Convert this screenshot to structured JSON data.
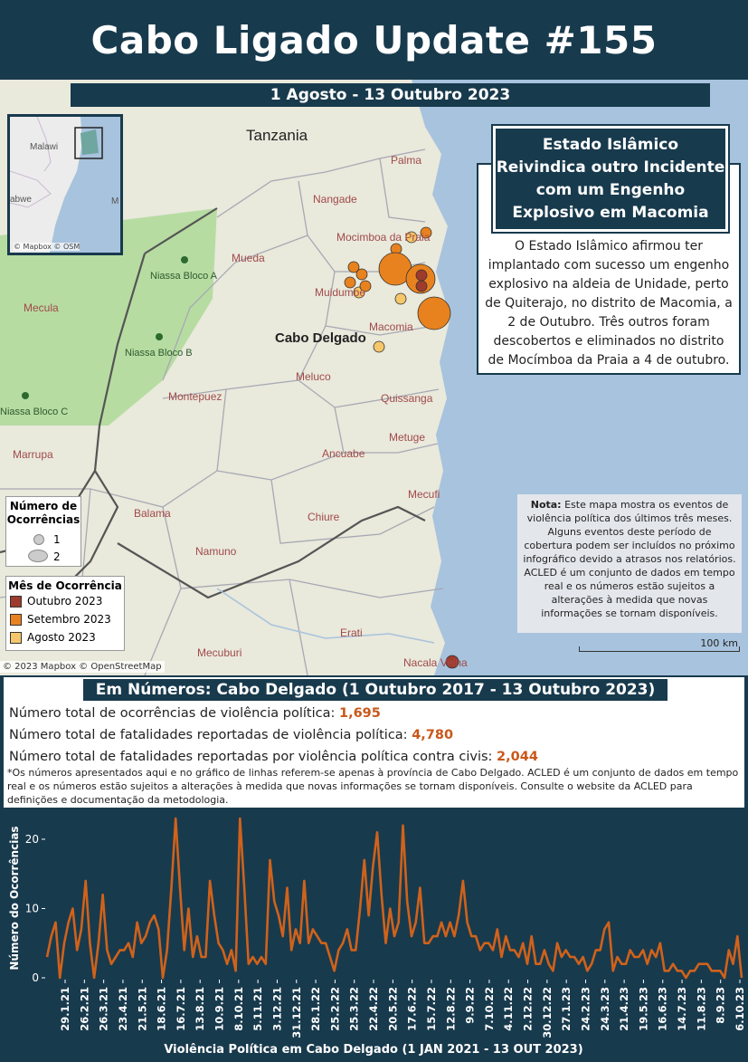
{
  "header": {
    "title": "Cabo Ligado Update #155"
  },
  "map": {
    "date_range": "1 Agosto - 13 Outubro 2023",
    "country_label": "Tanzania",
    "province_label": "Cabo Delgado",
    "district_labels": [
      "Palma",
      "Nangade",
      "Mocimboa da Praia",
      "Mueda",
      "Muidumbe",
      "Macomia",
      "Meluco",
      "Montepuez",
      "Quissanga",
      "Ancuabe",
      "Metuge",
      "Mecufi",
      "Chiure",
      "Balama",
      "Namuno",
      "Erati",
      "Mecuburi",
      "Nacala Velha",
      "Marrupa",
      "Mecula"
    ],
    "park_labels": [
      "Niassa Bloco A",
      "Niassa Bloco B",
      "Niassa Bloco C"
    ],
    "inset_labels": [
      "Malawi",
      "abwe",
      "M"
    ],
    "inset_attr": "© Mapbox © OSM",
    "map_attr": "© 2023 Mapbox © OpenStreetMap",
    "scale_label": "100 km",
    "colors": {
      "outubro": "#9e3b2c",
      "setembro": "#e8821e",
      "agosto": "#f6c66a",
      "water": "#a8c3dd",
      "land": "#e9e9dc",
      "park": "#b7dca2"
    }
  },
  "callout": {
    "title": "Estado Islâmico Reivindica outro Incidente com um Engenho Explosivo em Macomia",
    "body": "O Estado Islâmico afirmou ter implantado com sucesso um engenho explosivo na aldeia de Unidade, perto de Quiterajo, no distrito de Macomia, a 2 de Outubro. Três outros foram descobertos e eliminados no distrito de Mocímboa da Praia a 4 de outubro."
  },
  "note": {
    "label": "Nota:",
    "text": " Este mapa mostra os eventos de violência política dos últimos três meses. Alguns eventos deste período de cobertura podem ser incluídos no próximo infográfico devido a atrasos nos relatórios. ACLED é um conjunto de dados em tempo real e os números estão sujeitos a alterações à medida que novas informações se tornam disponíveis."
  },
  "legend_size": {
    "title": "Número de Ocorrências",
    "items": [
      "1",
      "2"
    ]
  },
  "legend_month": {
    "title": "Mês de Ocorrência",
    "items": [
      "Outubro 2023",
      "Setembro 2023",
      "Agosto 2023"
    ]
  },
  "stats": {
    "title": "Em Números: Cabo Delgado (1 Outubro 2017 - 13 Outubro 2023)",
    "line1_label": "Número total de ocorrências de violência política: ",
    "line1_value": "1,695",
    "line2_label": "Número total de fatalidades reportadas de violência política: ",
    "line2_value": "4,780",
    "line3_label": "Número total de fatalidades reportadas por violência política contra civis: ",
    "line3_value": "2,044",
    "footnote": "*Os números apresentados aqui e no gráfico de linhas referem-se apenas à província de Cabo Delgado. ACLED é um conjunto de dados em tempo real e os números estão sujeitos a alterações à medida que novas informações se tornam disponíveis. Consulte o website da ACLED para definições e documentação da metodologia."
  },
  "chart_data": {
    "type": "line",
    "xlabel": "Violência Política em Cabo Delgado (1 JAN 2021 - 13 OUT 2023)",
    "ylabel": "Número do Ocorrências",
    "ylim": [
      0,
      23
    ],
    "yticks": [
      0,
      10,
      20
    ],
    "tick_labels": [
      "29.1.21",
      "26.2.21",
      "26.3.21",
      "23.4.21",
      "21.5.21",
      "18.6.21",
      "16.7.21",
      "13.8.21",
      "10.9.21",
      "8.10.21",
      "5.11.21",
      "3.12.21",
      "31.12.21",
      "28.1.22",
      "25.2.22",
      "25.3.22",
      "22.4.22",
      "20.5.22",
      "17.6.22",
      "15.7.22",
      "12.8.22",
      "9.9.22",
      "7.10.22",
      "4.11.22",
      "2.12.22",
      "30.12.22",
      "27.1.23",
      "24.2.23",
      "24.3.23",
      "21.4.23",
      "19.5.23",
      "16.6.23",
      "14.7.23",
      "11.8.23",
      "8.9.23",
      "6.10.23"
    ],
    "color": "#d0621b",
    "values": [
      3,
      6,
      8,
      0,
      5,
      8,
      10,
      4,
      7,
      14,
      5,
      0,
      5,
      12,
      4,
      2,
      3,
      4,
      4,
      5,
      3,
      8,
      5,
      6,
      8,
      9,
      7,
      0,
      4,
      13,
      23,
      13,
      4,
      10,
      3,
      6,
      3,
      3,
      14,
      9,
      5,
      4,
      2,
      4,
      1,
      23,
      13,
      2,
      3,
      2,
      3,
      2,
      17,
      11,
      9,
      6,
      13,
      4,
      7,
      5,
      14,
      5,
      7,
      6,
      5,
      5,
      3,
      1,
      4,
      5,
      7,
      4,
      4,
      10,
      17,
      9,
      16,
      21,
      12,
      5,
      10,
      6,
      8,
      22,
      11,
      6,
      8,
      13,
      5,
      5,
      6,
      6,
      8,
      6,
      8,
      6,
      9,
      14,
      8,
      6,
      6,
      4,
      5,
      5,
      4,
      7,
      3,
      6,
      4,
      4,
      3,
      5,
      2,
      6,
      2,
      2,
      4,
      2,
      1,
      5,
      3,
      4,
      3,
      3,
      2,
      3,
      1,
      2,
      4,
      4,
      7,
      8,
      1,
      3,
      2,
      2,
      4,
      3,
      3,
      4,
      2,
      4,
      3,
      5,
      1,
      1,
      2,
      1,
      1,
      0,
      1,
      1,
      2,
      2,
      2,
      1,
      1,
      1,
      0,
      4,
      2,
      6,
      0
    ]
  }
}
